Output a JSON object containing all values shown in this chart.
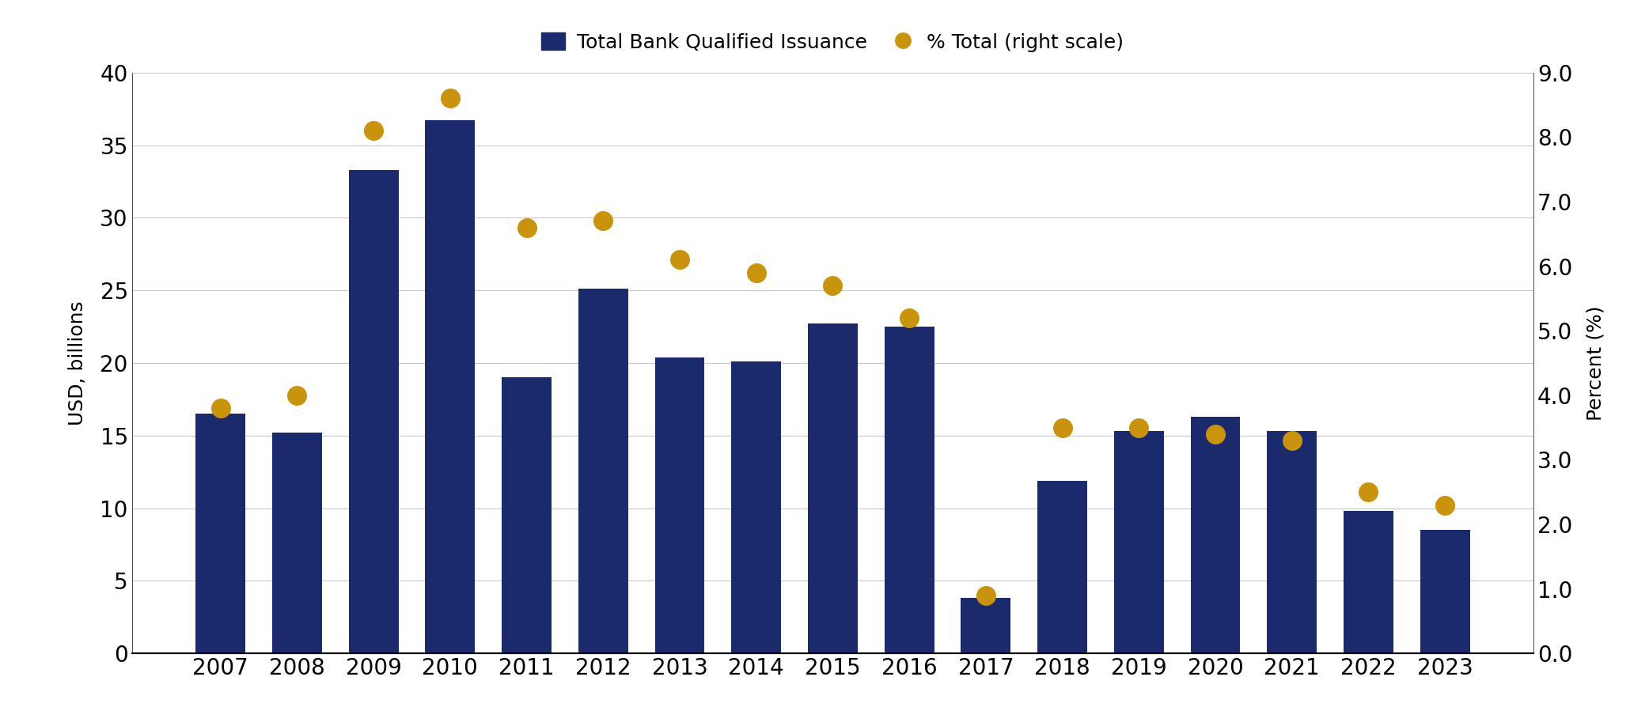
{
  "years": [
    2007,
    2008,
    2009,
    2010,
    2011,
    2012,
    2013,
    2014,
    2015,
    2016,
    2017,
    2018,
    2019,
    2020,
    2021,
    2022,
    2023
  ],
  "bar_values": [
    16.5,
    15.2,
    33.3,
    36.7,
    19.0,
    25.1,
    20.4,
    20.1,
    22.7,
    22.5,
    3.8,
    11.9,
    15.3,
    16.3,
    15.3,
    9.8,
    8.5
  ],
  "dot_values": [
    3.8,
    4.0,
    8.1,
    8.6,
    6.6,
    6.7,
    6.1,
    5.9,
    5.7,
    5.2,
    0.9,
    3.5,
    3.5,
    3.4,
    3.3,
    2.5,
    2.3
  ],
  "bar_color": "#1a2a6c",
  "dot_color": "#c9930c",
  "bar_label": "Total Bank Qualified Issuance",
  "dot_label": "% Total (right scale)",
  "ylabel_left": "USD, billions",
  "ylabel_right": "Percent (%)",
  "ylim_left": [
    0,
    40
  ],
  "ylim_right": [
    0.0,
    9.0
  ],
  "yticks_left": [
    0,
    5,
    10,
    15,
    20,
    25,
    30,
    35,
    40
  ],
  "yticks_right": [
    0.0,
    1.0,
    2.0,
    3.0,
    4.0,
    5.0,
    6.0,
    7.0,
    8.0,
    9.0
  ],
  "background_color": "#ffffff",
  "grid_color": "#c8c8c8",
  "legend_fontsize": 18,
  "axis_label_fontsize": 18,
  "tick_fontsize": 20
}
